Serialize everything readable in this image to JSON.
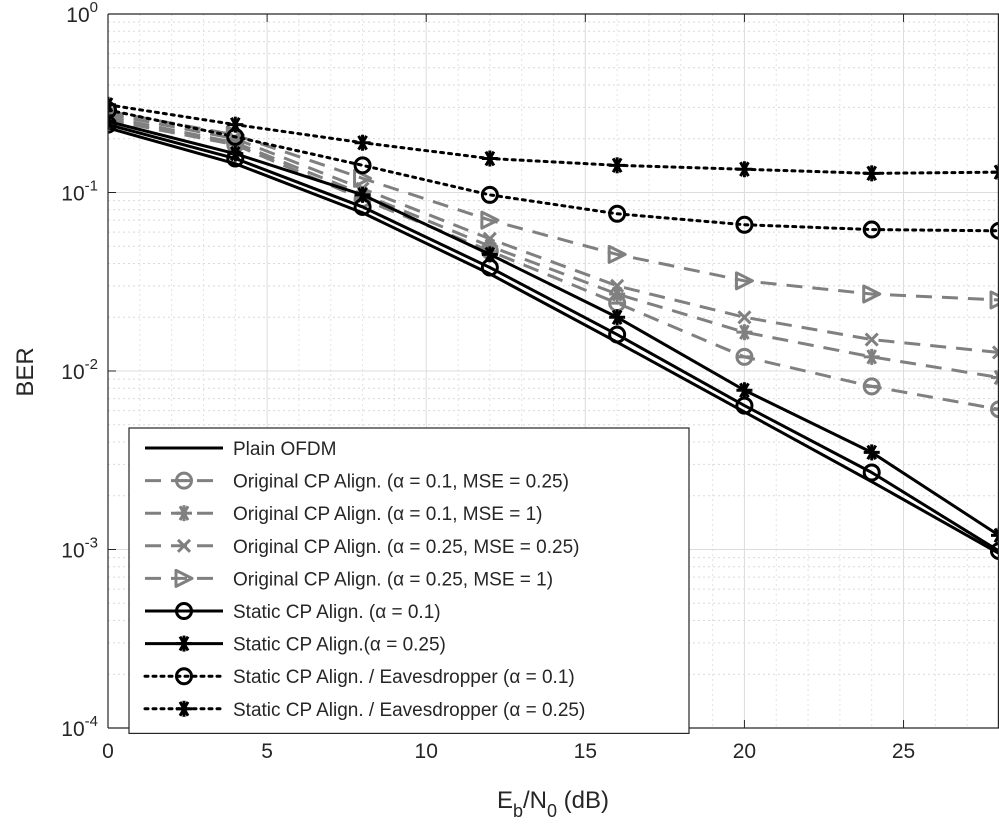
{
  "chart_data": {
    "type": "line",
    "xlabel_main": "E",
    "xlabel_sub1": "b",
    "xlabel_mid": "/N",
    "xlabel_sub2": "0",
    "xlabel_tail": " (dB)",
    "ylabel": "BER",
    "xlim": [
      0,
      28
    ],
    "ylim": [
      0.0001,
      1
    ],
    "yscale": "log",
    "grid": true,
    "minor_grid": true,
    "legend_placement": "lower-left",
    "x_ticks": [
      {
        "value": 0,
        "label": "0"
      },
      {
        "value": 5,
        "label": "5"
      },
      {
        "value": 10,
        "label": "10"
      },
      {
        "value": 15,
        "label": "15"
      },
      {
        "value": 20,
        "label": "20"
      },
      {
        "value": 25,
        "label": "25"
      }
    ],
    "y_ticks": [
      {
        "value": 1,
        "base": "10",
        "exp": "0"
      },
      {
        "value": 0.1,
        "base": "10",
        "exp": "-1"
      },
      {
        "value": 0.01,
        "base": "10",
        "exp": "-2"
      },
      {
        "value": 0.001,
        "base": "10",
        "exp": "-3"
      },
      {
        "value": 0.0001,
        "base": "10",
        "exp": "-4"
      }
    ],
    "x": [
      0,
      4,
      8,
      12,
      16,
      20,
      24,
      28
    ],
    "series": [
      {
        "name": "Plain OFDM",
        "color": "#000000",
        "dash": "solid",
        "marker": "none",
        "values": [
          0.23,
          0.145,
          0.077,
          0.035,
          0.0145,
          0.0059,
          0.0024,
          0.00095
        ]
      },
      {
        "name": "Original CP Align. (α = 0.1, MSE = 0.25)",
        "color": "#808080",
        "dash": "dashed",
        "marker": "circle-line",
        "values": [
          0.255,
          0.185,
          0.092,
          0.047,
          0.024,
          0.012,
          0.0082,
          0.0061
        ]
      },
      {
        "name": "Original CP Align. (α = 0.1, MSE = 1)",
        "color": "#808080",
        "dash": "dashed",
        "marker": "asterisk",
        "values": [
          0.265,
          0.19,
          0.098,
          0.05,
          0.027,
          0.0165,
          0.012,
          0.0092
        ]
      },
      {
        "name": "Original CP Align. (α = 0.25, MSE = 0.25)",
        "color": "#808080",
        "dash": "dashed",
        "marker": "x",
        "values": [
          0.275,
          0.2,
          0.105,
          0.055,
          0.03,
          0.02,
          0.015,
          0.0127
        ]
      },
      {
        "name": "Original CP Align. (α = 0.25, MSE = 1)",
        "color": "#808080",
        "dash": "dashed",
        "marker": "triangle-right",
        "values": [
          0.285,
          0.21,
          0.12,
          0.07,
          0.045,
          0.032,
          0.027,
          0.025
        ]
      },
      {
        "name": "Static CP Align. (α = 0.1)",
        "color": "#000000",
        "dash": "solid",
        "marker": "circle",
        "values": [
          0.24,
          0.155,
          0.083,
          0.038,
          0.016,
          0.0064,
          0.0027,
          0.00098
        ]
      },
      {
        "name": "Static CP Align.(α = 0.25)",
        "color": "#000000",
        "dash": "solid",
        "marker": "asterisk",
        "values": [
          0.25,
          0.165,
          0.097,
          0.045,
          0.02,
          0.0078,
          0.0035,
          0.0012
        ]
      },
      {
        "name": "Static CP Align. / Eavesdropper (α = 0.1)",
        "color": "#000000",
        "dash": "dotted",
        "marker": "circle",
        "values": [
          0.29,
          0.205,
          0.142,
          0.097,
          0.076,
          0.066,
          0.062,
          0.061
        ]
      },
      {
        "name": "Static CP Align. / Eavesdropper (α = 0.25)",
        "color": "#000000",
        "dash": "dotted",
        "marker": "asterisk",
        "values": [
          0.31,
          0.24,
          0.19,
          0.155,
          0.142,
          0.135,
          0.128,
          0.13
        ]
      }
    ]
  }
}
